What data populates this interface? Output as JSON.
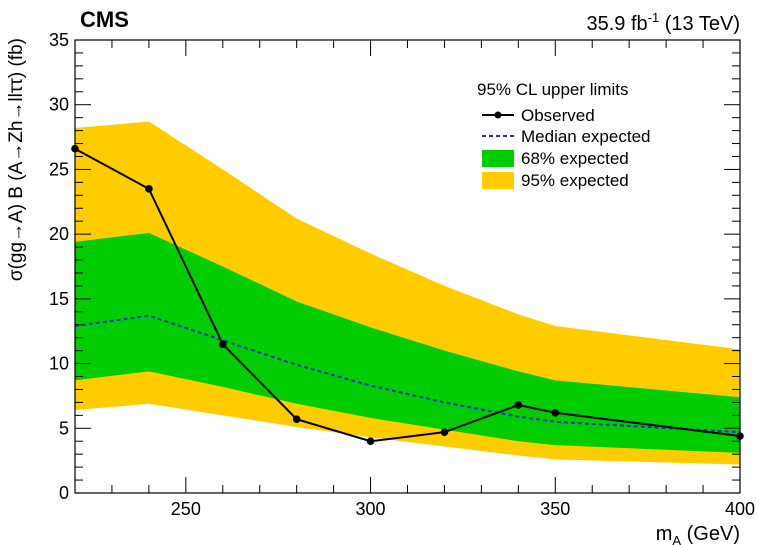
{
  "chart_data": {
    "type": "line",
    "experiment_label": "CMS",
    "lumi_label": "35.9 fb",
    "lumi_superscript": "-1",
    "energy_label": " (13 TeV)",
    "xlabel_main": "m",
    "xlabel_sub": "A",
    "xlabel_unit": " (GeV)",
    "ylabel": "σ(gg→A) B (A→Zh→llττ) (fb)",
    "xlim": [
      220,
      400
    ],
    "ylim": [
      0,
      35
    ],
    "x_ticks": [
      250,
      300,
      350,
      400
    ],
    "y_ticks": [
      0,
      5,
      10,
      15,
      20,
      25,
      30,
      35
    ],
    "legend": {
      "title": "95% CL upper limits",
      "entries": [
        "Observed",
        "Median expected",
        "68% expected",
        "95% expected"
      ],
      "placement": "top-right"
    },
    "series": [
      {
        "name": "Observed",
        "x": [
          220,
          240,
          260,
          280,
          300,
          320,
          340,
          350,
          400
        ],
        "values": [
          26.6,
          23.5,
          11.5,
          5.7,
          4.0,
          4.7,
          6.8,
          6.2,
          4.4
        ]
      },
      {
        "name": "Median expected",
        "x": [
          220,
          240,
          260,
          280,
          300,
          320,
          340,
          350,
          400
        ],
        "values": [
          12.9,
          13.7,
          11.8,
          9.9,
          8.3,
          7.0,
          5.9,
          5.5,
          4.7
        ]
      },
      {
        "name": "68% expected",
        "x": [
          220,
          240,
          260,
          280,
          300,
          320,
          340,
          350,
          400
        ],
        "low": [
          8.7,
          9.4,
          8.2,
          6.9,
          5.8,
          4.9,
          4.0,
          3.7,
          3.1
        ],
        "high": [
          19.4,
          20.1,
          17.5,
          14.8,
          12.8,
          11.0,
          9.4,
          8.7,
          7.4
        ]
      },
      {
        "name": "95% expected",
        "x": [
          220,
          240,
          260,
          280,
          300,
          320,
          340,
          350,
          400
        ],
        "low": [
          6.4,
          6.9,
          6.0,
          5.1,
          4.3,
          3.6,
          2.9,
          2.6,
          2.2
        ],
        "high": [
          28.2,
          28.7,
          25.0,
          21.2,
          18.5,
          16.0,
          13.8,
          12.9,
          11.1
        ]
      }
    ],
    "colors": {
      "observed": "#000000",
      "median": "#1f2fbf",
      "band68": "#00cc00",
      "band95": "#ffcc00"
    }
  }
}
